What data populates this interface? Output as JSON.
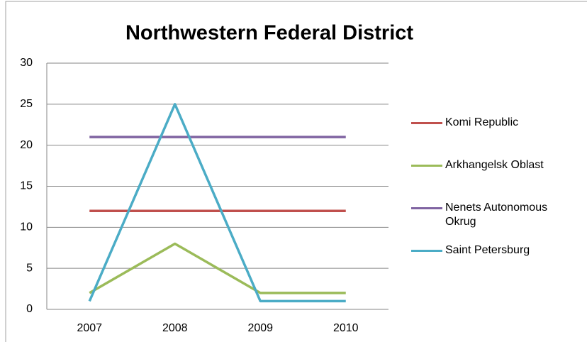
{
  "chart_data": {
    "type": "line",
    "title": "Northwestern Federal District",
    "categories": [
      "2007",
      "2008",
      "2009",
      "2010"
    ],
    "series": [
      {
        "name": "Komi Republic",
        "color": "#c0504d",
        "values": [
          12,
          12,
          12,
          12
        ]
      },
      {
        "name": "Arkhangelsk Oblast",
        "color": "#9bbb59",
        "values": [
          2,
          8,
          2,
          2
        ]
      },
      {
        "name": "Nenets Autonomous Okrug",
        "color": "#8064a2",
        "values": [
          21,
          21,
          21,
          21
        ]
      },
      {
        "name": "Saint Petersburg",
        "color": "#4bacc6",
        "values": [
          1,
          25,
          1,
          1
        ]
      }
    ],
    "ylim": [
      0,
      30
    ],
    "yticks": [
      0,
      5,
      10,
      15,
      20,
      25,
      30
    ],
    "grid": true,
    "legend_position": "right"
  }
}
